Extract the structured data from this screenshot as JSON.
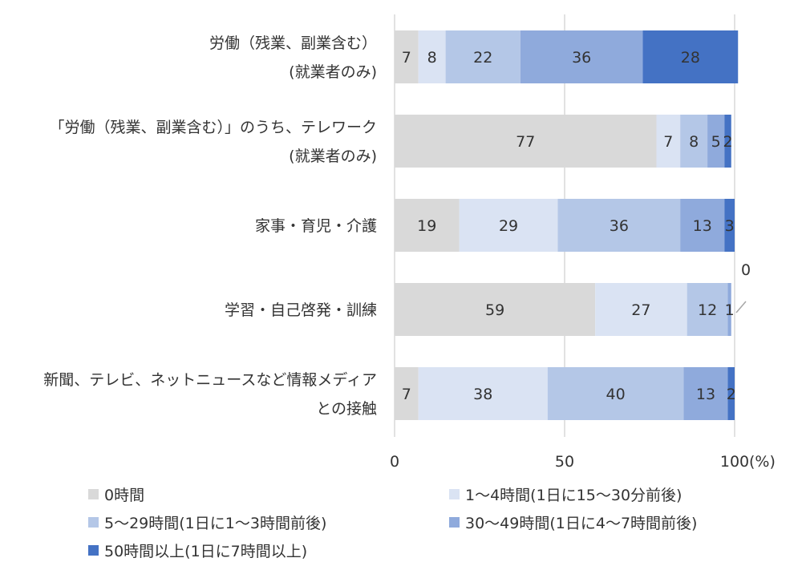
{
  "chart_data": {
    "type": "bar",
    "orientation": "horizontal",
    "stacked": true,
    "categories": [
      [
        "労働（残業、副業含む）",
        "(就業者のみ)"
      ],
      [
        "「労働（残業、副業含む）」のうち、テレワーク",
        "(就業者のみ)"
      ],
      [
        "家事・育児・介護"
      ],
      [
        "学習・自己啓発・訓練"
      ],
      [
        "新聞、テレビ、ネットニュースなど情報メディア",
        "との接触"
      ]
    ],
    "series": [
      {
        "name": "0時間",
        "color": "#d9d9d9",
        "values": [
          7,
          77,
          19,
          59,
          7
        ]
      },
      {
        "name": "1～4時間(1日に15～30分前後)",
        "color": "#dae3f3",
        "values": [
          8,
          7,
          29,
          27,
          38
        ]
      },
      {
        "name": "5～29時間(1日に1～3時間前後)",
        "color": "#b4c7e7",
        "values": [
          22,
          8,
          36,
          12,
          40
        ]
      },
      {
        "name": "30～49時間(1日に4～7時間前後)",
        "color": "#8faadc",
        "values": [
          36,
          5,
          13,
          1,
          13
        ]
      },
      {
        "name": "50時間以上(1日に7時間以上)",
        "color": "#4472c4",
        "values": [
          28,
          2,
          3,
          0,
          2
        ]
      }
    ],
    "xlim": [
      0,
      100
    ],
    "xticks": [
      0,
      50,
      100
    ],
    "xtick_labels": [
      "0",
      "50",
      "100"
    ],
    "xlabel_unit": "(%)",
    "grid": true,
    "legend_position": "bottom",
    "annotations": [
      {
        "category_index": 3,
        "series_index": 4,
        "text": "0"
      }
    ]
  }
}
